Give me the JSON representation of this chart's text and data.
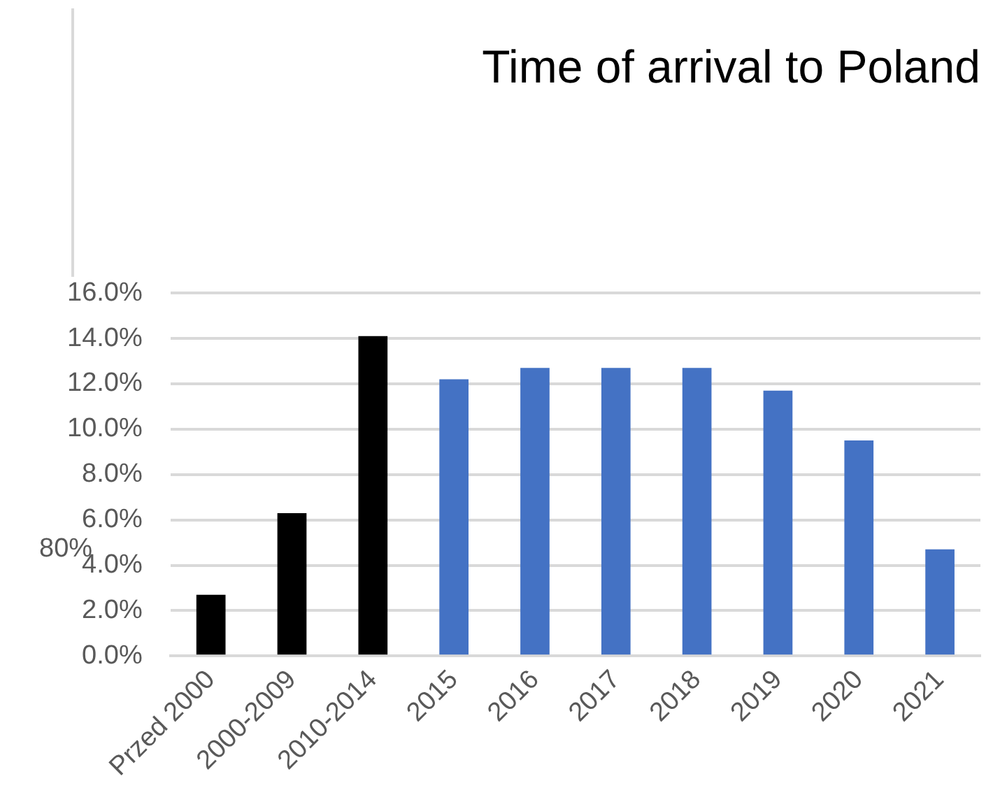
{
  "chart_data": {
    "type": "bar",
    "title": "Time of arrival to Poland",
    "categories": [
      "Przed 2000",
      "2000-2009",
      "2010-2014",
      "2015",
      "2016",
      "2017",
      "2018",
      "2019",
      "2020",
      "2021"
    ],
    "values": [
      2.7,
      6.3,
      14.1,
      12.2,
      12.7,
      12.7,
      12.7,
      11.7,
      9.5,
      4.7
    ],
    "colors": [
      "#000000",
      "#000000",
      "#000000",
      "#4472c4",
      "#4472c4",
      "#4472c4",
      "#4472c4",
      "#4472c4",
      "#4472c4",
      "#4472c4"
    ],
    "ylim": [
      0,
      16
    ],
    "yticks": [
      {
        "value": 0,
        "label": "0.0%"
      },
      {
        "value": 2,
        "label": "2.0%"
      },
      {
        "value": 4,
        "label": "4.0%"
      },
      {
        "value": 6,
        "label": "6.0%"
      },
      {
        "value": 8,
        "label": "8.0%"
      },
      {
        "value": 10,
        "label": "10.0%"
      },
      {
        "value": 12,
        "label": "12.0%"
      },
      {
        "value": 14,
        "label": "14.0%"
      },
      {
        "value": 16,
        "label": "16.0%"
      }
    ],
    "annotations": [
      "80%"
    ],
    "grid": "y",
    "legend": false
  }
}
